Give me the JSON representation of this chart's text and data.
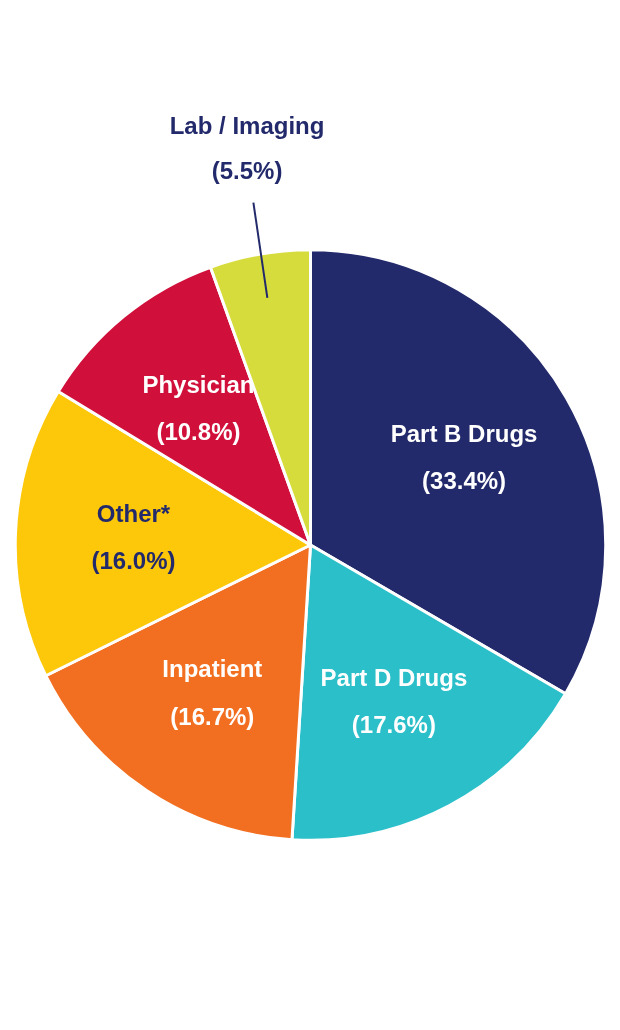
{
  "chart_data": {
    "type": "pie",
    "categories": [
      "Part B Drugs",
      "Part D Drugs",
      "Inpatient",
      "Other*",
      "Physician",
      "Lab / Imaging"
    ],
    "values": [
      33.4,
      17.6,
      16.7,
      16.0,
      10.8,
      5.5
    ],
    "value_labels": [
      "(33.4%)",
      "(17.6%)",
      "(16.7%)",
      "(16.0%)",
      "(10.8%)",
      "(5.5%)"
    ],
    "colors": [
      "#232a6b",
      "#2bbfc9",
      "#f26f21",
      "#fdc80a",
      "#d0103a",
      "#d6dc3c"
    ]
  }
}
